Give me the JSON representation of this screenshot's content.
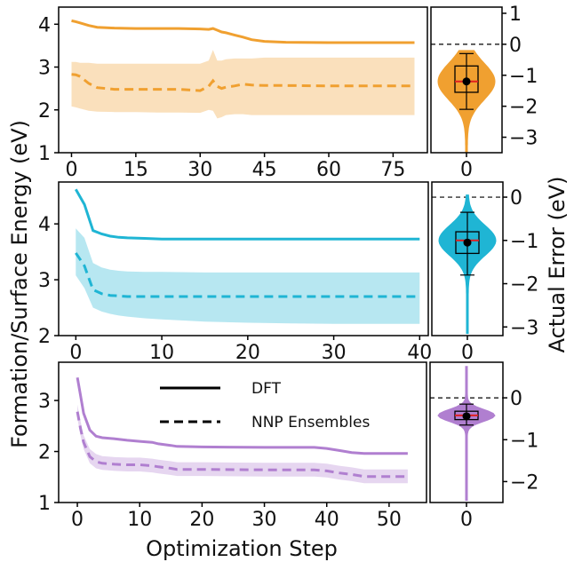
{
  "figure": {
    "ylabel_left": "Formation/Surface Energy (eV)",
    "ylabel_right": "Actual Error (eV)",
    "xlabel": "Optimization Step",
    "legend": {
      "dft": "DFT",
      "nnp": "NNP Ensembles"
    }
  },
  "chart_data": [
    {
      "type": "line",
      "panel": "top",
      "color": "#f0a030",
      "xlim": [
        -3,
        83
      ],
      "ylim": [
        1,
        4.4
      ],
      "xticks": [
        0,
        15,
        30,
        45,
        60,
        75
      ],
      "yticks": [
        1,
        2,
        3,
        4
      ],
      "x": [
        0,
        1,
        2,
        4,
        6,
        10,
        15,
        20,
        25,
        30,
        32,
        33,
        34,
        35,
        36,
        38,
        40,
        42,
        45,
        50,
        60,
        70,
        80
      ],
      "dft": [
        4.08,
        4.06,
        4.03,
        3.97,
        3.93,
        3.91,
        3.9,
        3.9,
        3.9,
        3.89,
        3.88,
        3.9,
        3.86,
        3.82,
        3.8,
        3.75,
        3.7,
        3.64,
        3.6,
        3.58,
        3.57,
        3.57,
        3.57
      ],
      "nnp": [
        2.83,
        2.82,
        2.78,
        2.62,
        2.52,
        2.48,
        2.48,
        2.48,
        2.48,
        2.45,
        2.55,
        2.68,
        2.55,
        2.5,
        2.53,
        2.56,
        2.6,
        2.58,
        2.57,
        2.57,
        2.56,
        2.56,
        2.56
      ],
      "nnp_low": [
        2.08,
        2.06,
        2.03,
        1.98,
        1.96,
        1.95,
        1.95,
        1.94,
        1.94,
        1.93,
        2.0,
        1.98,
        1.8,
        1.83,
        1.88,
        1.9,
        1.9,
        1.88,
        1.88,
        1.88,
        1.88,
        1.88,
        1.88
      ],
      "nnp_high": [
        3.12,
        3.12,
        3.1,
        3.1,
        3.08,
        3.08,
        3.08,
        3.08,
        3.08,
        3.08,
        3.15,
        3.4,
        3.15,
        3.15,
        3.18,
        3.2,
        3.2,
        3.2,
        3.22,
        3.22,
        3.22,
        3.22,
        3.22
      ],
      "violin": {
        "ylim": [
          -3.5,
          1.2
        ],
        "yticks": [
          1,
          0,
          -1,
          -2,
          -3
        ],
        "xticks": [
          0
        ],
        "median": -1.2,
        "mean": -1.2,
        "q1": -1.55,
        "q3": -0.7,
        "whisker_low": -2.1,
        "whisker_high": -0.3,
        "min": -3.5,
        "max": -0.2,
        "zero_line": 0
      }
    },
    {
      "type": "line",
      "panel": "middle",
      "color": "#1fb5d4",
      "xlim": [
        -2,
        41
      ],
      "ylim": [
        2,
        4.75
      ],
      "xticks": [
        0,
        10,
        20,
        30,
        40
      ],
      "yticks": [
        2,
        3,
        4
      ],
      "x": [
        0,
        1,
        2,
        3,
        4,
        5,
        6,
        8,
        10,
        15,
        20,
        25,
        30,
        35,
        40
      ],
      "dft": [
        4.62,
        4.35,
        3.88,
        3.82,
        3.78,
        3.76,
        3.75,
        3.74,
        3.73,
        3.73,
        3.73,
        3.73,
        3.73,
        3.73,
        3.73
      ],
      "nnp": [
        3.48,
        3.25,
        2.82,
        2.75,
        2.72,
        2.71,
        2.7,
        2.7,
        2.7,
        2.7,
        2.7,
        2.7,
        2.7,
        2.7,
        2.7
      ],
      "nnp_low": [
        3.08,
        2.85,
        2.5,
        2.43,
        2.39,
        2.36,
        2.34,
        2.31,
        2.29,
        2.25,
        2.23,
        2.22,
        2.21,
        2.21,
        2.21
      ],
      "nnp_high": [
        3.92,
        3.75,
        3.3,
        3.22,
        3.18,
        3.16,
        3.15,
        3.14,
        3.14,
        3.13,
        3.13,
        3.13,
        3.13,
        3.13,
        3.13
      ],
      "violin": {
        "ylim": [
          -3.2,
          0.35
        ],
        "yticks": [
          0,
          -1,
          -2,
          -3
        ],
        "xticks": [
          0
        ],
        "median": -1.0,
        "mean": -1.05,
        "q1": -1.3,
        "q3": -0.8,
        "whisker_low": -1.8,
        "whisker_high": -0.35,
        "min": -3.15,
        "max": 0.05,
        "zero_line": 0
      }
    },
    {
      "type": "line",
      "panel": "bottom",
      "color": "#b07fd0",
      "xlim": [
        -3,
        56
      ],
      "ylim": [
        1,
        3.75
      ],
      "xticks": [
        0,
        10,
        20,
        30,
        40,
        50
      ],
      "yticks": [
        1,
        2,
        3
      ],
      "x": [
        0,
        0.5,
        1,
        2,
        3,
        4,
        6,
        8,
        10,
        12,
        13,
        15,
        16,
        20,
        30,
        38,
        40,
        42,
        44,
        46,
        50,
        53
      ],
      "dft": [
        3.45,
        3.1,
        2.75,
        2.42,
        2.3,
        2.27,
        2.25,
        2.22,
        2.2,
        2.18,
        2.15,
        2.12,
        2.1,
        2.09,
        2.08,
        2.08,
        2.06,
        2.02,
        1.98,
        1.96,
        1.96,
        1.96
      ],
      "nnp": [
        2.78,
        2.45,
        2.18,
        1.9,
        1.8,
        1.77,
        1.75,
        1.74,
        1.74,
        1.72,
        1.7,
        1.67,
        1.65,
        1.65,
        1.64,
        1.64,
        1.62,
        1.58,
        1.55,
        1.51,
        1.51,
        1.51
      ],
      "nnp_low": [
        2.65,
        2.32,
        2.05,
        1.77,
        1.67,
        1.64,
        1.62,
        1.61,
        1.61,
        1.59,
        1.57,
        1.54,
        1.52,
        1.52,
        1.51,
        1.51,
        1.49,
        1.45,
        1.42,
        1.38,
        1.38,
        1.38
      ],
      "nnp_high": [
        2.92,
        2.6,
        2.32,
        2.05,
        1.95,
        1.91,
        1.89,
        1.88,
        1.88,
        1.86,
        1.84,
        1.81,
        1.79,
        1.79,
        1.78,
        1.78,
        1.76,
        1.72,
        1.69,
        1.65,
        1.65,
        1.65
      ],
      "violin": {
        "ylim": [
          -2.5,
          0.85
        ],
        "yticks": [
          0,
          -1,
          -2
        ],
        "xticks": [
          0
        ],
        "median": -0.42,
        "mean": -0.44,
        "q1": -0.52,
        "q3": -0.32,
        "whisker_low": -0.65,
        "whisker_high": -0.15,
        "min": -2.45,
        "max": 0.75,
        "zero_line": 0
      }
    }
  ]
}
